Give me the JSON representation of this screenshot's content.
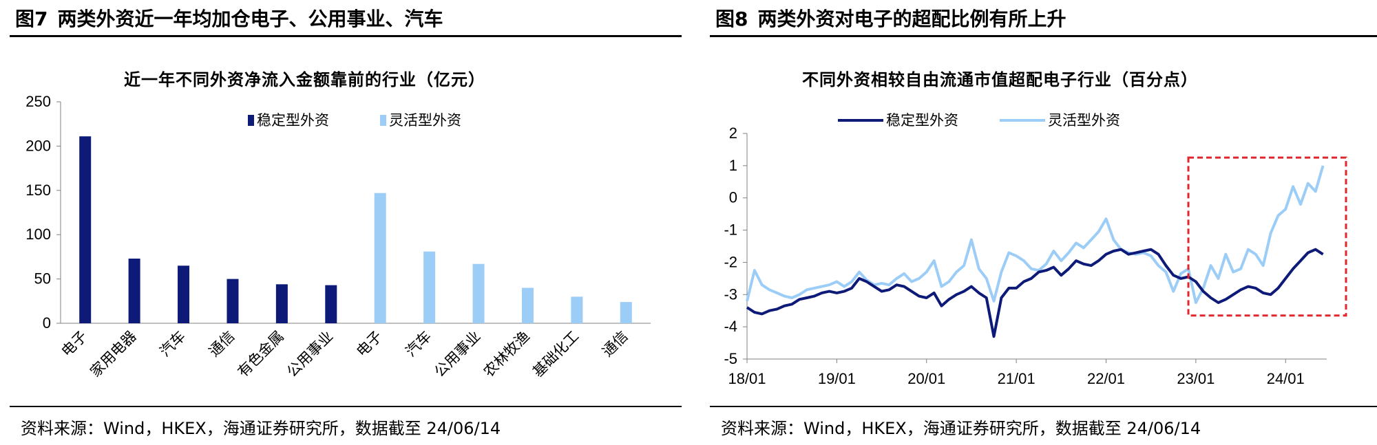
{
  "left": {
    "fig_num": "图7",
    "fig_title": "两类外资近一年均加仓电子、公用事业、汽车",
    "source": "资料来源：Wind，HKEX，海通证券研究所，数据截至 24/06/14"
  },
  "right": {
    "fig_num": "图8",
    "fig_title": "两类外资对电子的超配比例有所上升",
    "source": "资料来源：Wind，HKEX，海通证券研究所，数据截至 24/06/14"
  },
  "colors": {
    "stable": "#0d1a78",
    "flexible": "#9ccdf7",
    "highlight": "#e0252b"
  },
  "chart_data": [
    {
      "type": "bar",
      "title": "近一年不同外资净流入金额靠前的行业（亿元）",
      "ylim": [
        0,
        250
      ],
      "yticks": [
        "0",
        "50",
        "100",
        "150",
        "200",
        "250"
      ],
      "legend_position": "top-center",
      "series": [
        {
          "name": "稳定型外资",
          "categories": [
            "电子",
            "家用电器",
            "汽车",
            "通信",
            "有色金属",
            "公用事业"
          ],
          "values": [
            211,
            73,
            65,
            50,
            44,
            43
          ]
        },
        {
          "name": "灵活型外资",
          "categories": [
            "电子",
            "汽车",
            "公用事业",
            "农林牧渔",
            "基础化工",
            "通信"
          ],
          "values": [
            147,
            81,
            67,
            40,
            30,
            24
          ]
        }
      ]
    },
    {
      "type": "line",
      "title": "不同外资相较自由流通市值超配电子行业（百分点）",
      "ylim": [
        -5,
        2
      ],
      "yticks": [
        "2",
        "1",
        "0",
        "-1",
        "-2",
        "-3",
        "-4",
        "-5"
      ],
      "xticks": [
        "18/01",
        "19/01",
        "20/01",
        "21/01",
        "22/01",
        "23/01",
        "24/01"
      ],
      "xlim": [
        "2018-01",
        "2024-06"
      ],
      "legend_position": "top-center",
      "highlight_region": {
        "x": [
          "2022-12",
          "2024-06"
        ],
        "y": [
          -3.65,
          1.25
        ]
      },
      "series": [
        {
          "name": "稳定型外资",
          "points": [
            [
              "2018-01",
              -3.4
            ],
            [
              "2018-02",
              -3.55
            ],
            [
              "2018-03",
              -3.6
            ],
            [
              "2018-04",
              -3.5
            ],
            [
              "2018-05",
              -3.45
            ],
            [
              "2018-06",
              -3.35
            ],
            [
              "2018-07",
              -3.3
            ],
            [
              "2018-08",
              -3.15
            ],
            [
              "2018-09",
              -3.1
            ],
            [
              "2018-10",
              -3.05
            ],
            [
              "2018-11",
              -2.95
            ],
            [
              "2018-12",
              -2.9
            ],
            [
              "2019-01",
              -2.95
            ],
            [
              "2019-02",
              -2.9
            ],
            [
              "2019-03",
              -2.8
            ],
            [
              "2019-04",
              -2.5
            ],
            [
              "2019-05",
              -2.6
            ],
            [
              "2019-06",
              -2.75
            ],
            [
              "2019-07",
              -2.9
            ],
            [
              "2019-08",
              -2.85
            ],
            [
              "2019-09",
              -2.7
            ],
            [
              "2019-10",
              -2.75
            ],
            [
              "2019-11",
              -2.9
            ],
            [
              "2019-12",
              -3.05
            ],
            [
              "2020-01",
              -3.1
            ],
            [
              "2020-02",
              -2.95
            ],
            [
              "2020-03",
              -3.35
            ],
            [
              "2020-04",
              -3.15
            ],
            [
              "2020-05",
              -3.0
            ],
            [
              "2020-06",
              -2.9
            ],
            [
              "2020-07",
              -2.75
            ],
            [
              "2020-08",
              -2.95
            ],
            [
              "2020-09",
              -3.1
            ],
            [
              "2020-10",
              -4.3
            ],
            [
              "2020-11",
              -3.1
            ],
            [
              "2020-12",
              -2.8
            ],
            [
              "2021-01",
              -2.8
            ],
            [
              "2021-02",
              -2.6
            ],
            [
              "2021-03",
              -2.5
            ],
            [
              "2021-04",
              -2.3
            ],
            [
              "2021-05",
              -2.25
            ],
            [
              "2021-06",
              -2.15
            ],
            [
              "2021-07",
              -2.4
            ],
            [
              "2021-08",
              -2.2
            ],
            [
              "2021-09",
              -1.95
            ],
            [
              "2021-10",
              -2.05
            ],
            [
              "2021-11",
              -2.1
            ],
            [
              "2021-12",
              -1.95
            ],
            [
              "2022-01",
              -1.75
            ],
            [
              "2022-02",
              -1.65
            ],
            [
              "2022-03",
              -1.6
            ],
            [
              "2022-04",
              -1.75
            ],
            [
              "2022-05",
              -1.7
            ],
            [
              "2022-06",
              -1.65
            ],
            [
              "2022-07",
              -1.6
            ],
            [
              "2022-08",
              -1.75
            ],
            [
              "2022-09",
              -2.1
            ],
            [
              "2022-10",
              -2.4
            ],
            [
              "2022-11",
              -2.5
            ],
            [
              "2022-12",
              -2.45
            ],
            [
              "2023-01",
              -2.6
            ],
            [
              "2023-02",
              -2.9
            ],
            [
              "2023-03",
              -3.1
            ],
            [
              "2023-04",
              -3.25
            ],
            [
              "2023-05",
              -3.15
            ],
            [
              "2023-06",
              -3.0
            ],
            [
              "2023-07",
              -2.85
            ],
            [
              "2023-08",
              -2.75
            ],
            [
              "2023-09",
              -2.8
            ],
            [
              "2023-10",
              -2.95
            ],
            [
              "2023-11",
              -3.0
            ],
            [
              "2023-12",
              -2.8
            ],
            [
              "2024-01",
              -2.5
            ],
            [
              "2024-02",
              -2.2
            ],
            [
              "2024-03",
              -1.95
            ],
            [
              "2024-04",
              -1.7
            ],
            [
              "2024-05",
              -1.6
            ],
            [
              "2024-06",
              -1.75
            ]
          ]
        },
        {
          "name": "灵活型外资",
          "points": [
            [
              "2018-01",
              -3.2
            ],
            [
              "2018-02",
              -2.25
            ],
            [
              "2018-03",
              -2.7
            ],
            [
              "2018-04",
              -2.85
            ],
            [
              "2018-05",
              -2.95
            ],
            [
              "2018-06",
              -3.05
            ],
            [
              "2018-07",
              -3.1
            ],
            [
              "2018-08",
              -3.0
            ],
            [
              "2018-09",
              -2.85
            ],
            [
              "2018-10",
              -2.8
            ],
            [
              "2018-11",
              -2.75
            ],
            [
              "2018-12",
              -2.7
            ],
            [
              "2019-01",
              -2.6
            ],
            [
              "2019-02",
              -2.75
            ],
            [
              "2019-03",
              -2.6
            ],
            [
              "2019-04",
              -2.3
            ],
            [
              "2019-05",
              -2.55
            ],
            [
              "2019-06",
              -2.7
            ],
            [
              "2019-07",
              -2.65
            ],
            [
              "2019-08",
              -2.7
            ],
            [
              "2019-09",
              -2.5
            ],
            [
              "2019-10",
              -2.35
            ],
            [
              "2019-11",
              -2.6
            ],
            [
              "2019-12",
              -2.5
            ],
            [
              "2020-01",
              -2.3
            ],
            [
              "2020-02",
              -1.95
            ],
            [
              "2020-03",
              -2.75
            ],
            [
              "2020-04",
              -2.6
            ],
            [
              "2020-05",
              -2.3
            ],
            [
              "2020-06",
              -2.1
            ],
            [
              "2020-07",
              -1.3
            ],
            [
              "2020-08",
              -2.2
            ],
            [
              "2020-09",
              -2.5
            ],
            [
              "2020-10",
              -3.2
            ],
            [
              "2020-11",
              -2.3
            ],
            [
              "2020-12",
              -1.7
            ],
            [
              "2021-01",
              -1.8
            ],
            [
              "2021-02",
              -1.95
            ],
            [
              "2021-03",
              -2.2
            ],
            [
              "2021-04",
              -2.25
            ],
            [
              "2021-05",
              -2.05
            ],
            [
              "2021-06",
              -1.65
            ],
            [
              "2021-07",
              -1.95
            ],
            [
              "2021-08",
              -1.7
            ],
            [
              "2021-09",
              -1.4
            ],
            [
              "2021-10",
              -1.55
            ],
            [
              "2021-11",
              -1.3
            ],
            [
              "2021-12",
              -1.05
            ],
            [
              "2022-01",
              -0.65
            ],
            [
              "2022-02",
              -1.3
            ],
            [
              "2022-03",
              -1.6
            ],
            [
              "2022-04",
              -1.7
            ],
            [
              "2022-05",
              -1.75
            ],
            [
              "2022-06",
              -1.7
            ],
            [
              "2022-07",
              -1.8
            ],
            [
              "2022-08",
              -2.1
            ],
            [
              "2022-09",
              -2.3
            ],
            [
              "2022-10",
              -2.9
            ],
            [
              "2022-11",
              -2.35
            ],
            [
              "2022-12",
              -2.2
            ],
            [
              "2023-01",
              -3.25
            ],
            [
              "2023-02",
              -2.8
            ],
            [
              "2023-03",
              -2.1
            ],
            [
              "2023-04",
              -2.5
            ],
            [
              "2023-05",
              -1.75
            ],
            [
              "2023-06",
              -2.3
            ],
            [
              "2023-07",
              -2.2
            ],
            [
              "2023-08",
              -1.6
            ],
            [
              "2023-09",
              -1.75
            ],
            [
              "2023-10",
              -2.1
            ],
            [
              "2023-11",
              -1.1
            ],
            [
              "2023-12",
              -0.55
            ],
            [
              "2024-01",
              -0.35
            ],
            [
              "2024-02",
              0.35
            ],
            [
              "2024-03",
              -0.2
            ],
            [
              "2024-04",
              0.45
            ],
            [
              "2024-05",
              0.2
            ],
            [
              "2024-06",
              1.0
            ]
          ]
        }
      ]
    }
  ]
}
